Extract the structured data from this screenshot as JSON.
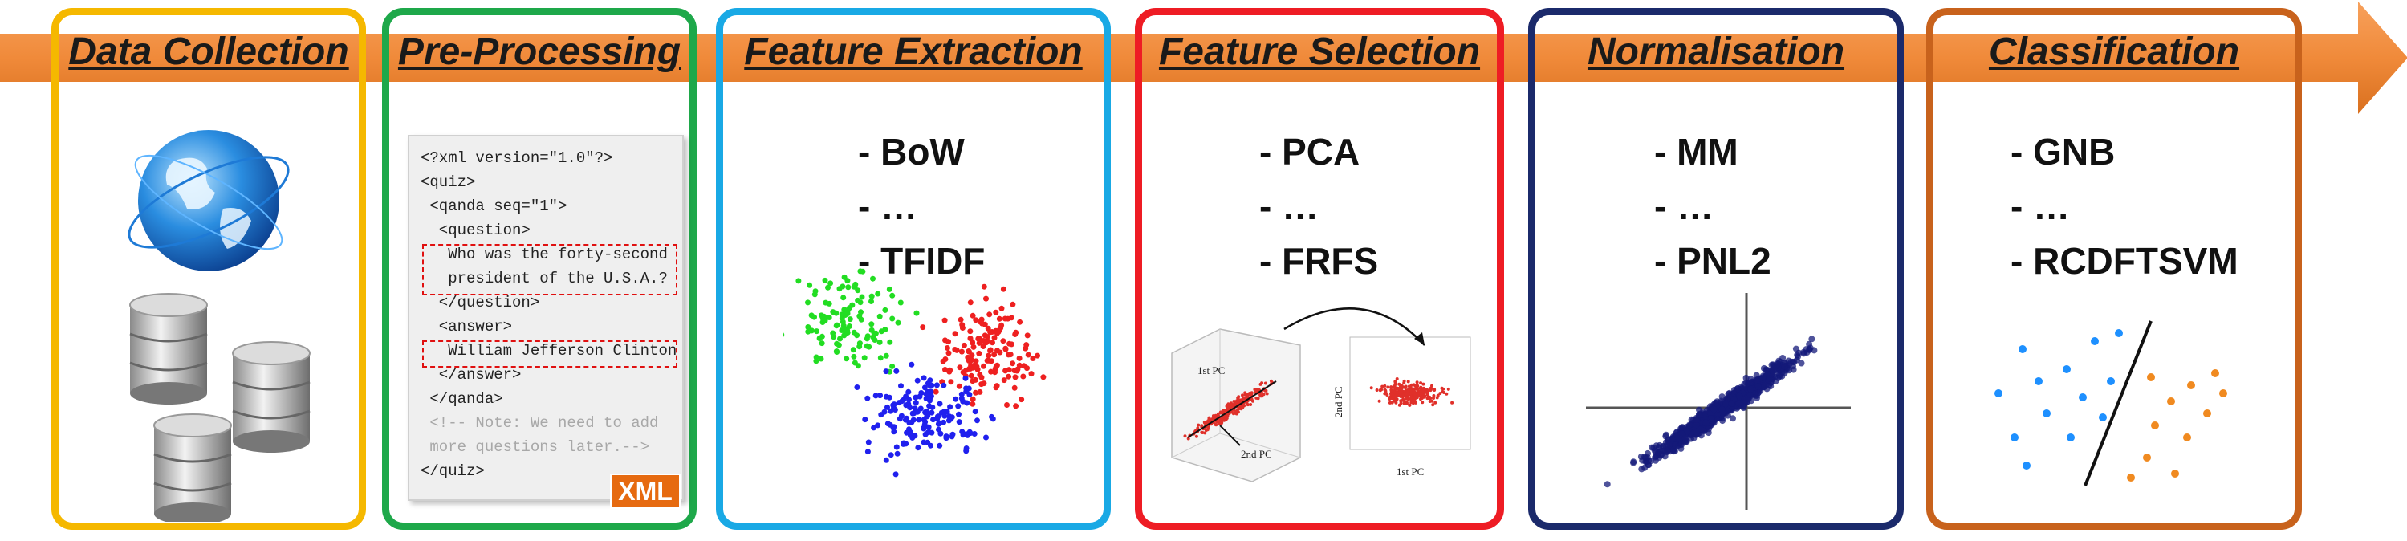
{
  "pipeline": {
    "stages": [
      {
        "title": "Data Collection",
        "color": "#f5b800"
      },
      {
        "title": "Pre-Processing",
        "color": "#1ea84a"
      },
      {
        "title": "Feature Extraction",
        "color": "#19a9e5",
        "methods": [
          "- BoW",
          "- …",
          "- TFIDF"
        ]
      },
      {
        "title": "Feature Selection",
        "color": "#ee1c24",
        "methods": [
          "- PCA",
          "- …",
          "- FRFS"
        ]
      },
      {
        "title": "Normalisation",
        "color": "#1b2a6b",
        "methods": [
          "- MM",
          "- …",
          "- PNL2"
        ]
      },
      {
        "title": "Classification",
        "color": "#c8621c",
        "methods": [
          "- GNB",
          "- …",
          "- RCDFTSVM"
        ]
      }
    ],
    "arrow_color": "#f08a3a"
  },
  "xml_snippet": {
    "lines": [
      "<?xml version=\"1.0\"?>",
      "<quiz>",
      " <qanda seq=\"1\">",
      "  <question>",
      "   Who was the forty-second",
      "   president of the U.S.A.?",
      "  </question>",
      "  <answer>",
      "   William Jefferson Clinton",
      "  </answer>",
      " </qanda>",
      " <!-- Note: We need to add",
      " more questions later.-->",
      "</quiz>"
    ],
    "badge": "XML"
  },
  "pca_plot": {
    "axis_left_1": "1st PC",
    "axis_left_2": "2nd PC",
    "axis_right_y": "2nd PC",
    "axis_right_x": "1st PC"
  }
}
